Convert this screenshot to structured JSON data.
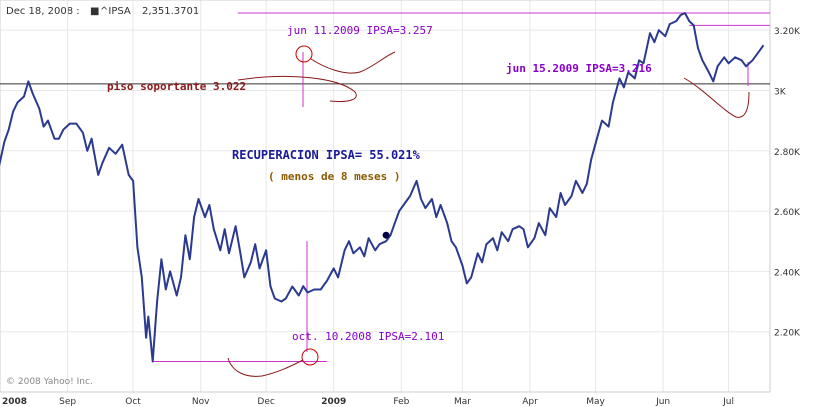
{
  "header": {
    "date_label": "Dec 18, 2008 :",
    "ticker": "^IPSA",
    "ticker_value": "2,351.3701"
  },
  "copyright": "© 2008 Yahoo! Inc.",
  "annotations": {
    "jun11": "jun 11.2009   IPSA=3.257",
    "jun15": "jun 15.2009  IPSA=3.216",
    "piso": "piso soportante 3.022",
    "recuperacion": "RECUPERACION IPSA= 55.021%",
    "menos": "( menos de 8 meses )",
    "oct10": "oct. 10.2008   IPSA=2.101"
  },
  "colors": {
    "series": "#2b3a8f",
    "grid": "#e8e8e8",
    "annotation_line": "#cc33cc",
    "annotation_text": "#8800cc",
    "curve": "#8b1a1a",
    "support_line": "#333333",
    "title_text": "#1a1a99",
    "subtitle_text": "#8b5a00"
  },
  "chart_data": {
    "type": "line",
    "title": "",
    "xlabel": "",
    "ylabel": "",
    "xlim": [
      "2008-08-01",
      "2009-07-20"
    ],
    "ylim": [
      2000,
      3300
    ],
    "y_ticks": [
      {
        "value": 2200,
        "label": "2.20K"
      },
      {
        "value": 2400,
        "label": "2.40K"
      },
      {
        "value": 2600,
        "label": "2.60K"
      },
      {
        "value": 2800,
        "label": "2.80K"
      },
      {
        "value": 3000,
        "label": "3K"
      },
      {
        "value": 3200,
        "label": "3.20K"
      }
    ],
    "x_ticks": [
      {
        "date": "2008-08-01",
        "label": "2008"
      },
      {
        "date": "2008-09-01",
        "label": "Sep"
      },
      {
        "date": "2008-10-01",
        "label": "Oct"
      },
      {
        "date": "2008-11-01",
        "label": "Nov"
      },
      {
        "date": "2008-12-01",
        "label": "Dec"
      },
      {
        "date": "2009-01-01",
        "label": "2009"
      },
      {
        "date": "2009-02-01",
        "label": "Feb"
      },
      {
        "date": "2009-03-01",
        "label": "Mar"
      },
      {
        "date": "2009-04-01",
        "label": "Apr"
      },
      {
        "date": "2009-05-01",
        "label": "May"
      },
      {
        "date": "2009-06-01",
        "label": "Jun"
      },
      {
        "date": "2009-07-01",
        "label": "Jul"
      }
    ],
    "grid": true,
    "series": [
      {
        "values": [
          [
            "2008-07-31",
            2730
          ],
          [
            "2008-08-03",
            2830
          ],
          [
            "2008-08-05",
            2870
          ],
          [
            "2008-08-07",
            2930
          ],
          [
            "2008-08-09",
            2960
          ],
          [
            "2008-08-12",
            2980
          ],
          [
            "2008-08-14",
            3030
          ],
          [
            "2008-08-16",
            2990
          ],
          [
            "2008-08-19",
            2940
          ],
          [
            "2008-08-21",
            2880
          ],
          [
            "2008-08-23",
            2900
          ],
          [
            "2008-08-26",
            2840
          ],
          [
            "2008-08-28",
            2840
          ],
          [
            "2008-08-30",
            2870
          ],
          [
            "2008-09-02",
            2890
          ],
          [
            "2008-09-05",
            2890
          ],
          [
            "2008-09-08",
            2860
          ],
          [
            "2008-09-10",
            2800
          ],
          [
            "2008-09-12",
            2840
          ],
          [
            "2008-09-15",
            2720
          ],
          [
            "2008-09-17",
            2760
          ],
          [
            "2008-09-20",
            2810
          ],
          [
            "2008-09-23",
            2790
          ],
          [
            "2008-09-26",
            2820
          ],
          [
            "2008-09-29",
            2720
          ],
          [
            "2008-10-01",
            2700
          ],
          [
            "2008-10-03",
            2480
          ],
          [
            "2008-10-05",
            2380
          ],
          [
            "2008-10-07",
            2180
          ],
          [
            "2008-10-08",
            2250
          ],
          [
            "2008-10-10",
            2101
          ],
          [
            "2008-10-12",
            2300
          ],
          [
            "2008-10-14",
            2440
          ],
          [
            "2008-10-16",
            2340
          ],
          [
            "2008-10-18",
            2400
          ],
          [
            "2008-10-21",
            2320
          ],
          [
            "2008-10-23",
            2380
          ],
          [
            "2008-10-25",
            2520
          ],
          [
            "2008-10-27",
            2440
          ],
          [
            "2008-10-29",
            2580
          ],
          [
            "2008-10-31",
            2640
          ],
          [
            "2008-11-03",
            2580
          ],
          [
            "2008-11-05",
            2620
          ],
          [
            "2008-11-07",
            2540
          ],
          [
            "2008-11-10",
            2470
          ],
          [
            "2008-11-12",
            2540
          ],
          [
            "2008-11-14",
            2460
          ],
          [
            "2008-11-17",
            2550
          ],
          [
            "2008-11-19",
            2470
          ],
          [
            "2008-11-21",
            2380
          ],
          [
            "2008-11-24",
            2430
          ],
          [
            "2008-11-26",
            2490
          ],
          [
            "2008-11-28",
            2410
          ],
          [
            "2008-12-01",
            2470
          ],
          [
            "2008-12-03",
            2350
          ],
          [
            "2008-12-05",
            2310
          ],
          [
            "2008-12-08",
            2300
          ],
          [
            "2008-12-10",
            2310
          ],
          [
            "2008-12-13",
            2350
          ],
          [
            "2008-12-16",
            2320
          ],
          [
            "2008-12-18",
            2351
          ],
          [
            "2008-12-20",
            2330
          ],
          [
            "2008-12-23",
            2340
          ],
          [
            "2008-12-26",
            2340
          ],
          [
            "2008-12-29",
            2370
          ],
          [
            "2009-01-01",
            2410
          ],
          [
            "2009-01-03",
            2380
          ],
          [
            "2009-01-06",
            2470
          ],
          [
            "2009-01-08",
            2500
          ],
          [
            "2009-01-10",
            2460
          ],
          [
            "2009-01-13",
            2480
          ],
          [
            "2009-01-15",
            2450
          ],
          [
            "2009-01-17",
            2510
          ],
          [
            "2009-01-20",
            2470
          ],
          [
            "2009-01-22",
            2490
          ],
          [
            "2009-01-25",
            2500
          ],
          [
            "2009-01-27",
            2520
          ],
          [
            "2009-01-29",
            2560
          ],
          [
            "2009-01-31",
            2600
          ],
          [
            "2009-02-03",
            2630
          ],
          [
            "2009-02-05",
            2650
          ],
          [
            "2009-02-08",
            2700
          ],
          [
            "2009-02-10",
            2640
          ],
          [
            "2009-02-12",
            2610
          ],
          [
            "2009-02-15",
            2640
          ],
          [
            "2009-02-17",
            2580
          ],
          [
            "2009-02-19",
            2620
          ],
          [
            "2009-02-22",
            2560
          ],
          [
            "2009-02-24",
            2500
          ],
          [
            "2009-02-26",
            2480
          ],
          [
            "2009-03-01",
            2420
          ],
          [
            "2009-03-03",
            2360
          ],
          [
            "2009-03-05",
            2380
          ],
          [
            "2009-03-08",
            2460
          ],
          [
            "2009-03-10",
            2430
          ],
          [
            "2009-03-12",
            2490
          ],
          [
            "2009-03-15",
            2510
          ],
          [
            "2009-03-17",
            2470
          ],
          [
            "2009-03-19",
            2530
          ],
          [
            "2009-03-22",
            2500
          ],
          [
            "2009-03-24",
            2540
          ],
          [
            "2009-03-27",
            2550
          ],
          [
            "2009-03-29",
            2540
          ],
          [
            "2009-03-31",
            2480
          ],
          [
            "2009-04-03",
            2510
          ],
          [
            "2009-04-05",
            2560
          ],
          [
            "2009-04-08",
            2520
          ],
          [
            "2009-04-10",
            2610
          ],
          [
            "2009-04-13",
            2580
          ],
          [
            "2009-04-15",
            2660
          ],
          [
            "2009-04-17",
            2620
          ],
          [
            "2009-04-20",
            2650
          ],
          [
            "2009-04-22",
            2700
          ],
          [
            "2009-04-25",
            2660
          ],
          [
            "2009-04-27",
            2690
          ],
          [
            "2009-04-29",
            2770
          ],
          [
            "2009-05-02",
            2850
          ],
          [
            "2009-05-04",
            2900
          ],
          [
            "2009-05-07",
            2880
          ],
          [
            "2009-05-09",
            2960
          ],
          [
            "2009-05-12",
            3040
          ],
          [
            "2009-05-14",
            3010
          ],
          [
            "2009-05-16",
            3060
          ],
          [
            "2009-05-19",
            3040
          ],
          [
            "2009-05-21",
            3100
          ],
          [
            "2009-05-23",
            3090
          ],
          [
            "2009-05-26",
            3190
          ],
          [
            "2009-05-28",
            3160
          ],
          [
            "2009-05-30",
            3200
          ],
          [
            "2009-06-02",
            3180
          ],
          [
            "2009-06-04",
            3220
          ],
          [
            "2009-06-07",
            3230
          ],
          [
            "2009-06-09",
            3250
          ],
          [
            "2009-06-11",
            3257
          ],
          [
            "2009-06-13",
            3230
          ],
          [
            "2009-06-15",
            3216
          ],
          [
            "2009-06-17",
            3140
          ],
          [
            "2009-06-19",
            3100
          ],
          [
            "2009-06-22",
            3060
          ],
          [
            "2009-06-24",
            3030
          ],
          [
            "2009-06-26",
            3080
          ],
          [
            "2009-06-29",
            3110
          ],
          [
            "2009-07-01",
            3090
          ],
          [
            "2009-07-04",
            3110
          ],
          [
            "2009-07-07",
            3100
          ],
          [
            "2009-07-09",
            3080
          ],
          [
            "2009-07-12",
            3100
          ],
          [
            "2009-07-15",
            3130
          ],
          [
            "2009-07-17",
            3150
          ]
        ]
      }
    ],
    "marker_point": [
      "2009-01-25",
      2520
    ],
    "reference_lines": [
      {
        "from": "2008-11-18",
        "to": "2009-07-20",
        "y": 3257
      },
      {
        "from": "2009-06-13",
        "to": "2009-07-20",
        "y": 3216
      },
      {
        "from": "2008-08-01",
        "to": "2009-07-20",
        "y": 3022
      },
      {
        "from": "2008-10-10",
        "to": "2008-12-29",
        "y": 2101
      }
    ]
  }
}
